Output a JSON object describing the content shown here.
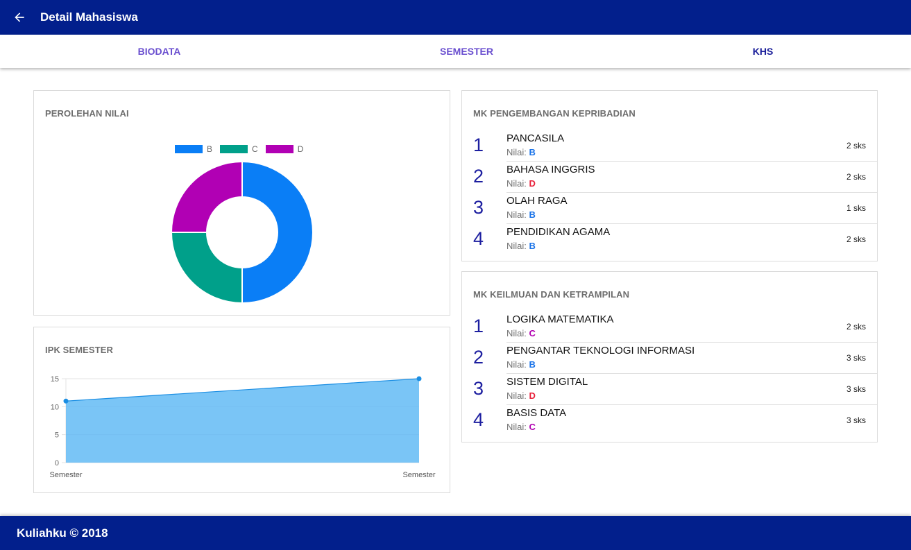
{
  "header": {
    "title": "Detail Mahasiswa",
    "back_icon": "arrow-left-icon"
  },
  "tabs": [
    {
      "label": "BIODATA",
      "active": false
    },
    {
      "label": "SEMESTER",
      "active": false
    },
    {
      "label": "KHS",
      "active": true
    }
  ],
  "grade_card": {
    "title": "PEROLEHAN NILAI"
  },
  "ipk_card": {
    "title": "IPK SEMESTER"
  },
  "colors": {
    "primary": "#021f8c",
    "grade_B": "#1a73e8",
    "grade_C": "#b000b0",
    "grade_D": "#e8203a"
  },
  "chart_data": [
    {
      "type": "pie",
      "variant": "doughnut",
      "categories": [
        "B",
        "C",
        "D"
      ],
      "values": [
        4,
        2,
        2
      ],
      "colors": [
        "#0a7ef6",
        "#00a08a",
        "#b100b4"
      ],
      "legend": "top"
    },
    {
      "type": "area",
      "x": [
        "Semester",
        "Semester"
      ],
      "values": [
        11,
        15
      ],
      "ylim": [
        0,
        15
      ],
      "yticks": [
        "0",
        "5",
        "10",
        "15"
      ],
      "grid": true,
      "color": "#59b6f4"
    }
  ],
  "personality_card": {
    "title": "MK PENGEMBANGAN KEPRIBADIAN",
    "grade_prefix": "Nilai:",
    "courses": [
      {
        "num": "1",
        "name": "PANCASILA",
        "grade": "B",
        "sks": "2 sks"
      },
      {
        "num": "2",
        "name": "BAHASA INGGRIS",
        "grade": "D",
        "sks": "2 sks"
      },
      {
        "num": "3",
        "name": "OLAH RAGA",
        "grade": "B",
        "sks": "1 sks"
      },
      {
        "num": "4",
        "name": "PENDIDIKAN AGAMA",
        "grade": "B",
        "sks": "2 sks"
      }
    ]
  },
  "skills_card": {
    "title": "MK KEILMUAN DAN KETRAMPILAN",
    "grade_prefix": "Nilai:",
    "courses": [
      {
        "num": "1",
        "name": "LOGIKA MATEMATIKA",
        "grade": "C",
        "sks": "2 sks"
      },
      {
        "num": "2",
        "name": "PENGANTAR TEKNOLOGI INFORMASI",
        "grade": "B",
        "sks": "3 sks"
      },
      {
        "num": "3",
        "name": "SISTEM DIGITAL",
        "grade": "D",
        "sks": "3 sks"
      },
      {
        "num": "4",
        "name": "BASIS DATA",
        "grade": "C",
        "sks": "3 sks"
      }
    ]
  },
  "footer": {
    "text": "Kuliahku © 2018"
  }
}
